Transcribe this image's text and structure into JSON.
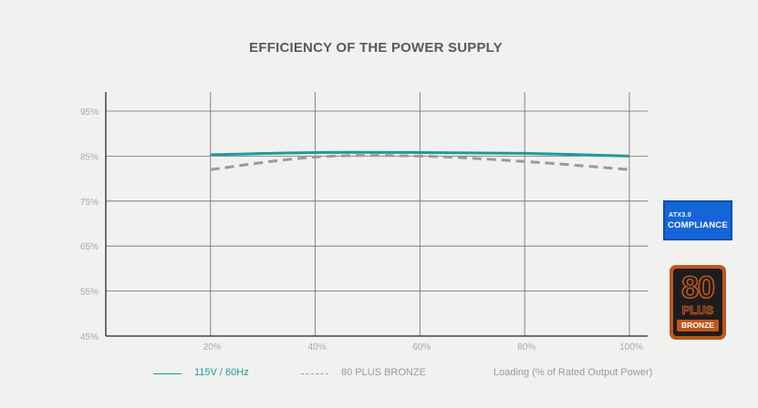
{
  "chart_data": {
    "type": "line",
    "title": "EFFICIENCY OF THE POWER SUPPLY",
    "xlabel": "Loading (% of Rated Output Power)",
    "ylabel": "",
    "x": [
      20,
      40,
      60,
      80,
      100
    ],
    "x_tick_labels": [
      "20%",
      "40%",
      "60%",
      "80%",
      "100%"
    ],
    "xlim": [
      0,
      100
    ],
    "y_ticks": [
      45,
      55,
      65,
      75,
      85,
      95
    ],
    "y_tick_labels": [
      "45%",
      "55%",
      "65%",
      "75%",
      "85%",
      "95%"
    ],
    "ylim": [
      45,
      100
    ],
    "grid": true,
    "series": [
      {
        "name": "115V / 60Hz",
        "style": "solid",
        "color": "#1f9a98",
        "values": [
          85.3,
          85.8,
          85.8,
          85.6,
          85.0
        ]
      },
      {
        "name": "80 PLUS BRONZE",
        "style": "dashed",
        "color": "#9a9a9a",
        "values": [
          82.0,
          84.8,
          85.0,
          83.8,
          82.0
        ]
      }
    ],
    "legend_position": "bottom"
  },
  "badges": {
    "atx": {
      "top": "ATX3.0",
      "bottom": "COMPLIANCE"
    },
    "plus80": {
      "number": "80",
      "word": "PLUS",
      "level": "BRONZE"
    }
  }
}
